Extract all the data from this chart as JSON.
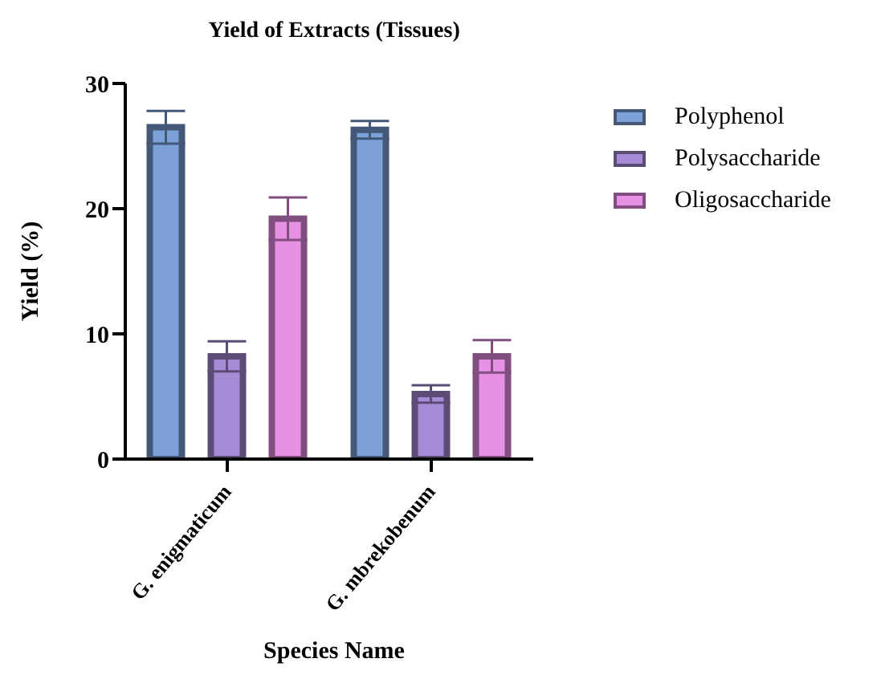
{
  "chart_data": {
    "type": "bar",
    "title": "Yield of Extracts (Tissues)",
    "xlabel": "Species Name",
    "ylabel": "Yield (%)",
    "categories": [
      "G. enigmaticum",
      "G. mbrekobenum"
    ],
    "series": [
      {
        "name": "Polyphenol",
        "color": "#7ba1d8",
        "values": [
          26.5,
          26.3
        ],
        "errors": [
          1.3,
          0.7
        ]
      },
      {
        "name": "Polysaccharide",
        "color": "#a68bd6",
        "values": [
          8.2,
          5.2
        ],
        "errors": [
          1.2,
          0.7
        ]
      },
      {
        "name": "Oligosaccharide",
        "color": "#e890e6",
        "values": [
          19.2,
          8.2
        ],
        "errors": [
          1.7,
          1.3
        ]
      }
    ],
    "ylim": [
      0,
      30
    ],
    "yticks": [
      0,
      10,
      20,
      30
    ],
    "grid": false,
    "legend": "top right"
  }
}
